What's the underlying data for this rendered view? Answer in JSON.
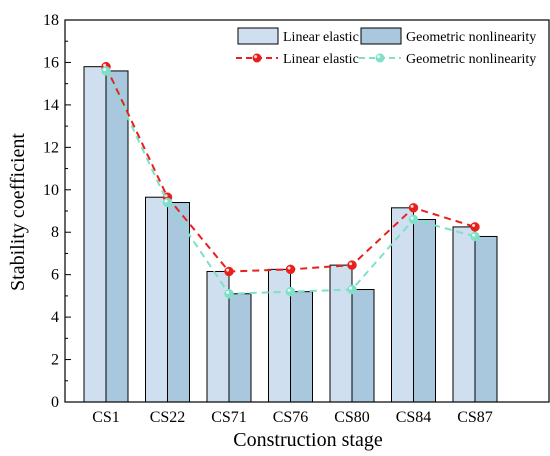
{
  "chart_data": {
    "type": "bar",
    "categories": [
      "CS1",
      "CS22",
      "CS71",
      "CS76",
      "CS80",
      "CS84",
      "CS87"
    ],
    "series": [
      {
        "name": "Linear elastic",
        "values": [
          15.8,
          9.65,
          6.15,
          6.25,
          6.45,
          9.15,
          8.25
        ],
        "color": "#cfdff0",
        "render": "bar"
      },
      {
        "name": "Geometric nonlinearity",
        "values": [
          15.6,
          9.4,
          5.1,
          5.2,
          5.3,
          8.6,
          7.8
        ],
        "color": "#a9c8dd",
        "render": "bar"
      },
      {
        "name": "Linear elastic",
        "values": [
          15.8,
          9.65,
          6.15,
          6.25,
          6.45,
          9.15,
          8.25
        ],
        "color": "#e8201c",
        "render": "line"
      },
      {
        "name": "Geometric nonlinearity",
        "values": [
          15.6,
          9.4,
          5.1,
          5.2,
          5.3,
          8.6,
          7.8
        ],
        "color": "#7fe0c8",
        "render": "line"
      }
    ],
    "xlabel": "Construction stage",
    "ylabel": "Stability coefficient",
    "ylim": [
      0,
      18
    ],
    "yticks": [
      "0",
      "2",
      "4",
      "6",
      "8",
      "10",
      "12",
      "14",
      "16",
      "18"
    ],
    "grid": false,
    "legend_position": "top-right"
  }
}
